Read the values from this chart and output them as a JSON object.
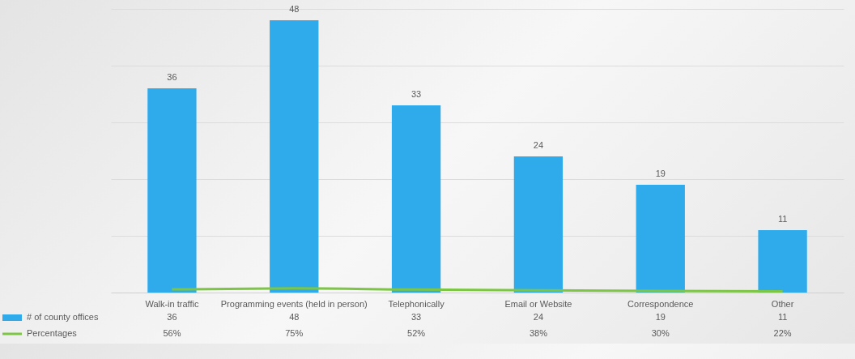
{
  "chart_data": {
    "type": "bar",
    "categories": [
      "Walk-in traffic",
      "Programming events (held in person)",
      "Telephonically",
      "Email or Website",
      "Correspondence",
      "Other"
    ],
    "series": [
      {
        "name": "# of county offices",
        "color": "#2fabeb",
        "values": [
          36,
          48,
          33,
          24,
          19,
          11
        ],
        "value_labels": [
          "36",
          "48",
          "33",
          "24",
          "19",
          "11"
        ]
      },
      {
        "name": "Percentages",
        "type": "line",
        "color": "#7cc644",
        "values": [
          0.56,
          0.75,
          0.52,
          0.38,
          0.3,
          0.22
        ],
        "value_labels": [
          "56%",
          "75%",
          "52%",
          "38%",
          "30%",
          "22%"
        ]
      }
    ],
    "ylim": [
      0,
      50
    ],
    "yticks": [
      0,
      10,
      20,
      30,
      40,
      50
    ],
    "grid": "y",
    "tick_labels": "x",
    "legend": "bottom left"
  }
}
